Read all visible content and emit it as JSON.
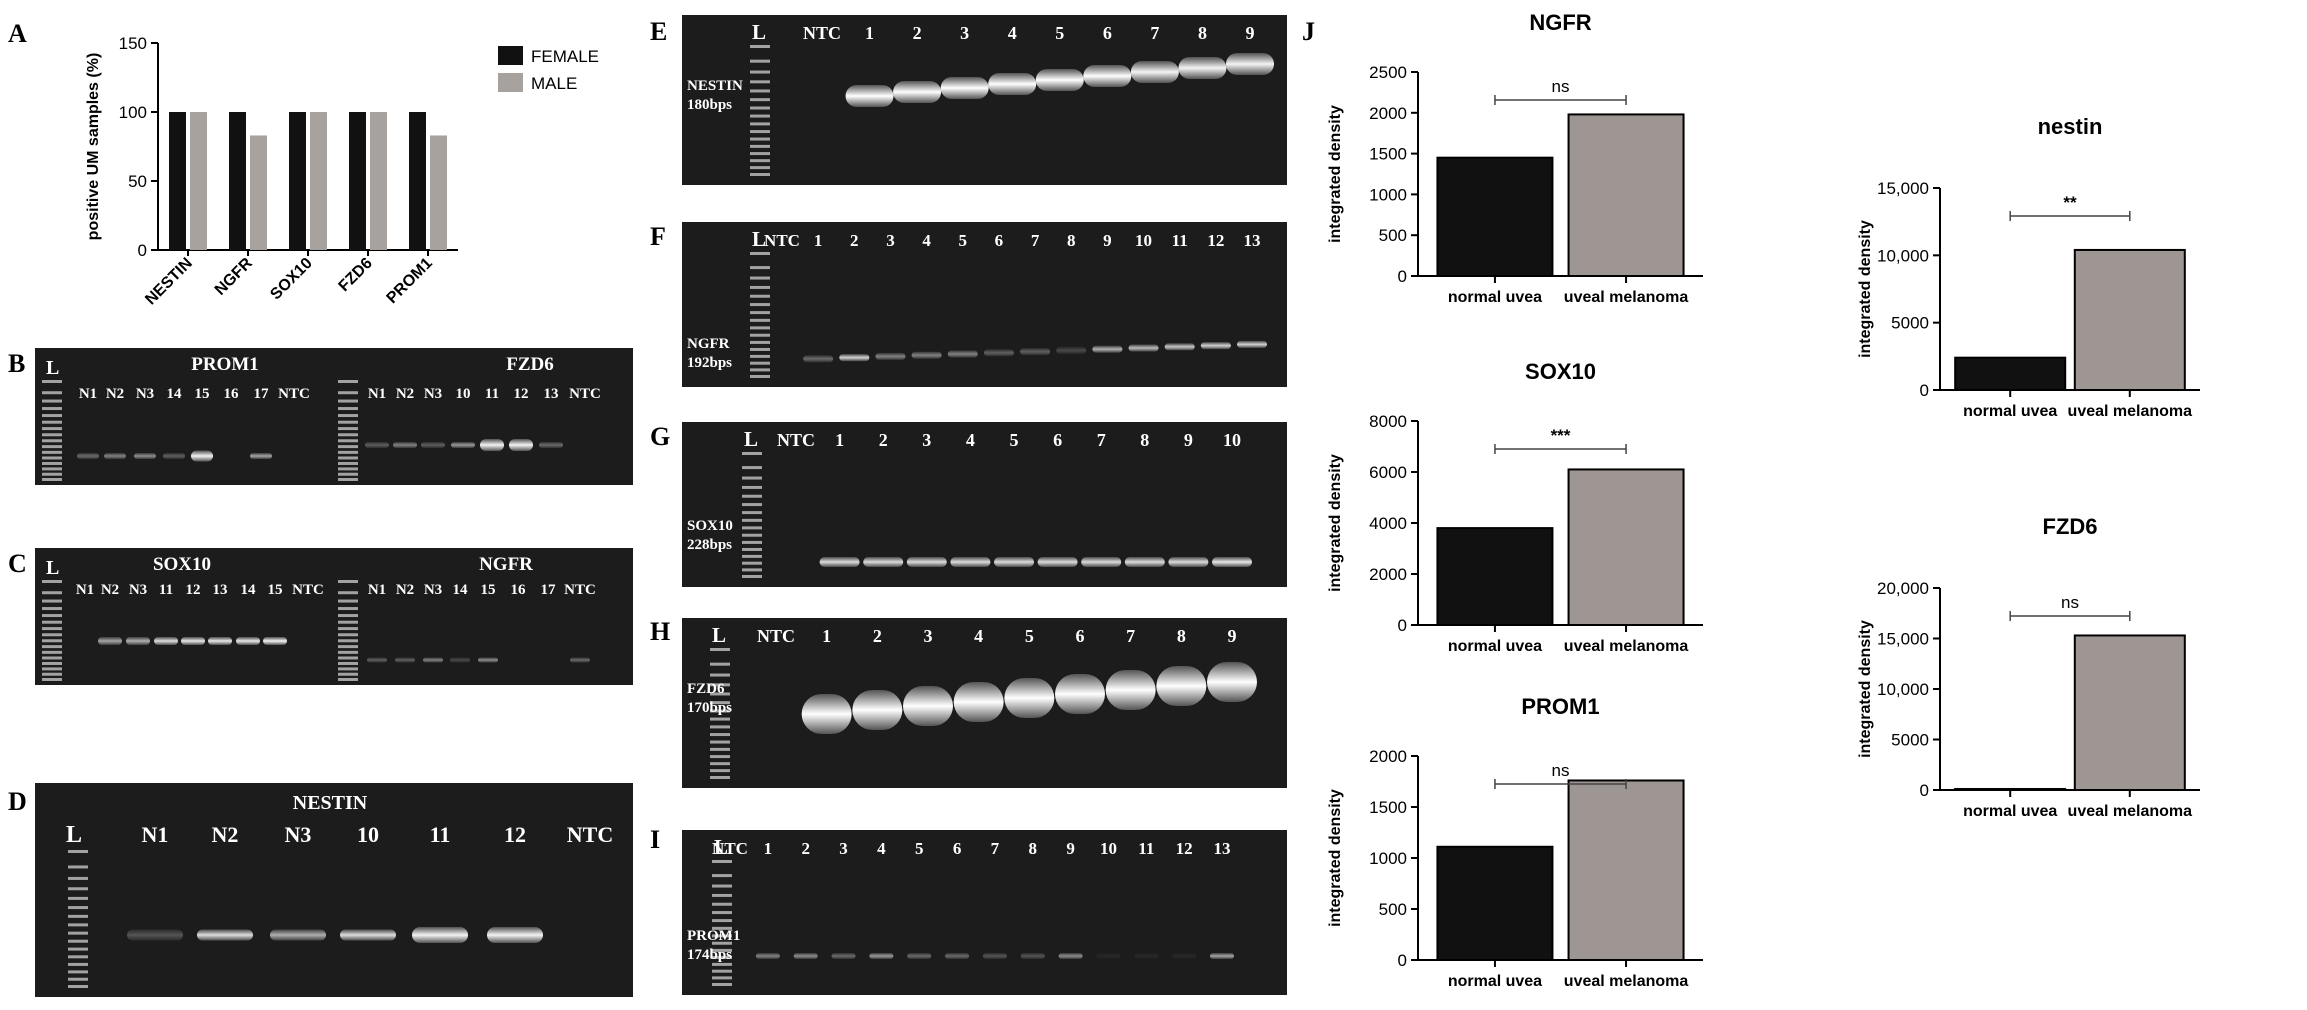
{
  "panels": {
    "A": {
      "label": "A"
    },
    "B": {
      "label": "B",
      "ladder": "L",
      "left": {
        "title": "PROM1",
        "lanes": [
          "N1",
          "N2",
          "N3",
          "14",
          "15",
          "16",
          "17",
          "NTC"
        ]
      },
      "right": {
        "title": "FZD6",
        "lanes": [
          "N1",
          "N2",
          "N3",
          "10",
          "11",
          "12",
          "13",
          "NTC"
        ]
      }
    },
    "C": {
      "label": "C",
      "ladder": "L",
      "left": {
        "title": "SOX10",
        "lanes": [
          "N1",
          "N2",
          "N3",
          "11",
          "12",
          "13",
          "14",
          "15",
          "NTC"
        ]
      },
      "right": {
        "title": "NGFR",
        "lanes": [
          "N1",
          "N2",
          "N3",
          "14",
          "15",
          "16",
          "17",
          "NTC"
        ]
      }
    },
    "D": {
      "label": "D",
      "ladder": "L",
      "title": "NESTIN",
      "lanes": [
        "N1",
        "N2",
        "N3",
        "10",
        "11",
        "12",
        "NTC"
      ]
    },
    "E": {
      "label": "E",
      "ladder": "L",
      "marker": "NESTIN",
      "size": "180bps",
      "lanes": [
        "NTC",
        "1",
        "2",
        "3",
        "4",
        "5",
        "6",
        "7",
        "8",
        "9"
      ]
    },
    "F": {
      "label": "F",
      "ladder": "L",
      "marker": "NGFR",
      "size": "192bps",
      "lanes": [
        "NTC",
        "1",
        "2",
        "3",
        "4",
        "5",
        "6",
        "7",
        "8",
        "9",
        "10",
        "11",
        "12",
        "13"
      ]
    },
    "G": {
      "label": "G",
      "ladder": "L",
      "marker": "SOX10",
      "size": "228bps",
      "lanes": [
        "NTC",
        "1",
        "2",
        "3",
        "4",
        "5",
        "6",
        "7",
        "8",
        "9",
        "10"
      ]
    },
    "H": {
      "label": "H",
      "ladder": "L",
      "marker": "FZD6",
      "size": "170bps",
      "lanes": [
        "NTC",
        "1",
        "2",
        "3",
        "4",
        "5",
        "6",
        "7",
        "8",
        "9"
      ]
    },
    "I": {
      "label": "I",
      "ladder": "L",
      "marker": "PROM1",
      "size": "174bps",
      "lanes": [
        "NTC",
        "1",
        "2",
        "3",
        "4",
        "5",
        "6",
        "7",
        "8",
        "9",
        "10",
        "11",
        "12",
        "13"
      ]
    },
    "J": {
      "label": "J"
    }
  },
  "chart_data": [
    {
      "id": "A",
      "type": "bar",
      "title": "",
      "xlabel": "",
      "ylabel": "positive UM samples (%)",
      "ylim": [
        0,
        150
      ],
      "yticks": [
        0,
        50,
        100,
        150
      ],
      "categories": [
        "NESTIN",
        "NGFR",
        "SOX10",
        "FZD6",
        "PROM1"
      ],
      "series": [
        {
          "name": "FEMALE",
          "values": [
            100,
            100,
            100,
            100,
            100
          ],
          "color": "#111111"
        },
        {
          "name": "MALE",
          "values": [
            100,
            83,
            100,
            100,
            83
          ],
          "color": "#a8a29e"
        }
      ],
      "legend": "top-right",
      "grid": false
    },
    {
      "id": "NGFR",
      "type": "bar",
      "title": "NGFR",
      "ylabel": "integrated density",
      "ylim": [
        0,
        2500
      ],
      "yticks": [
        "0",
        "500",
        "1000",
        "1500",
        "2000",
        "2500"
      ],
      "categories": [
        "normal uvea",
        "uveal melanoma"
      ],
      "values": [
        1450,
        1980
      ],
      "colors": [
        "#111111",
        "#9e9692"
      ],
      "significance": "ns"
    },
    {
      "id": "SOX10",
      "type": "bar",
      "title": "SOX10",
      "ylabel": "integrated density",
      "ylim": [
        0,
        8000
      ],
      "yticks": [
        "0",
        "2000",
        "4000",
        "6000",
        "8000"
      ],
      "categories": [
        "normal uvea",
        "uveal melanoma"
      ],
      "values": [
        3800,
        6100
      ],
      "colors": [
        "#111111",
        "#9e9692"
      ],
      "significance": "***"
    },
    {
      "id": "PROM1",
      "type": "bar",
      "title": "PROM1",
      "ylabel": "integrated density",
      "ylim": [
        0,
        2000
      ],
      "yticks": [
        "0",
        "500",
        "1000",
        "1500",
        "2000"
      ],
      "categories": [
        "normal uvea",
        "uveal melanoma"
      ],
      "values": [
        1110,
        1760
      ],
      "colors": [
        "#111111",
        "#9e9692"
      ],
      "significance": "ns"
    },
    {
      "id": "nestin",
      "type": "bar",
      "title": "nestin",
      "ylabel": "integrated density",
      "ylim": [
        0,
        15000
      ],
      "yticks": [
        "0",
        "5000",
        "10,000",
        "15,000"
      ],
      "categories": [
        "normal uvea",
        "uveal melanoma"
      ],
      "values": [
        2400,
        10400
      ],
      "colors": [
        "#111111",
        "#9e9692"
      ],
      "significance": "**"
    },
    {
      "id": "FZD6",
      "type": "bar",
      "title": "FZD6",
      "ylabel": "integrated density",
      "ylim": [
        0,
        20000
      ],
      "yticks": [
        "0",
        "5000",
        "10,000",
        "15,000",
        "20,000"
      ],
      "categories": [
        "normal uvea",
        "uveal melanoma"
      ],
      "values": [
        100,
        15300
      ],
      "colors": [
        "#111111",
        "#9e9692"
      ],
      "significance": "ns"
    }
  ]
}
